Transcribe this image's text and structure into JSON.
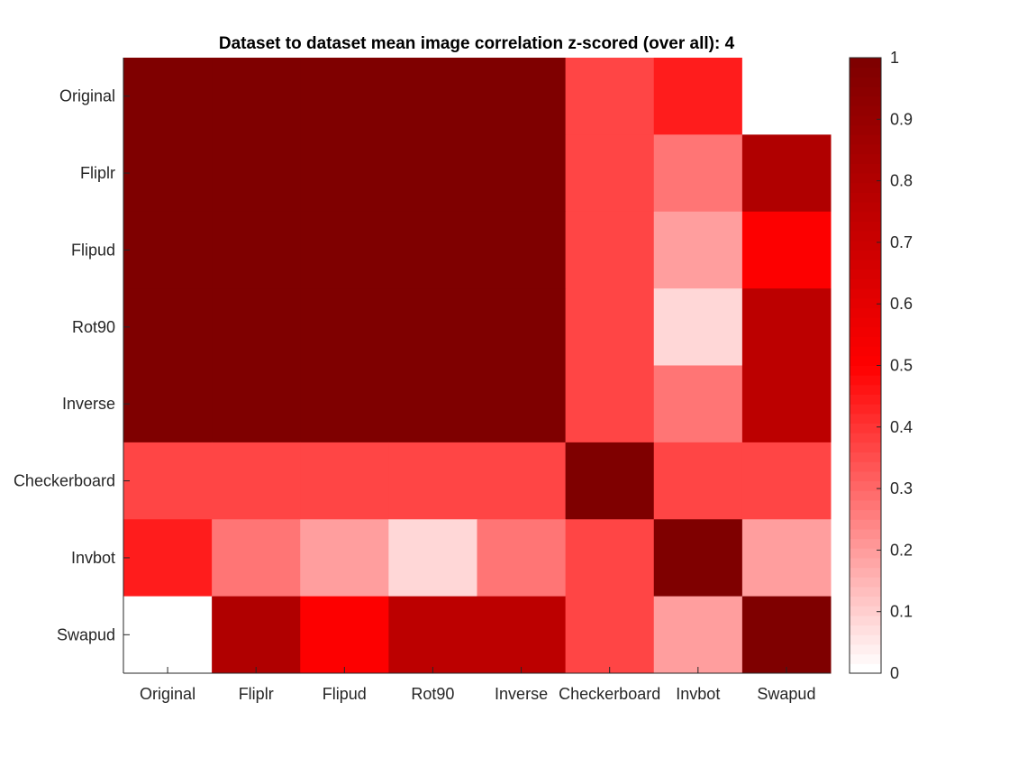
{
  "chart_data": {
    "type": "heatmap",
    "title": "Dataset to dataset mean image correlation z-scored (over all): 4",
    "xlabel": "",
    "ylabel": "",
    "x_categories": [
      "Original",
      "Fliplr",
      "Flipud",
      "Rot90",
      "Inverse",
      "Checkerboard",
      "Invbot",
      "Swapud"
    ],
    "y_categories": [
      "Original",
      "Fliplr",
      "Flipud",
      "Rot90",
      "Inverse",
      "Checkerboard",
      "Invbot",
      "Swapud"
    ],
    "values": [
      [
        1.0,
        1.0,
        1.0,
        1.0,
        1.0,
        0.36,
        0.44,
        0.0
      ],
      [
        1.0,
        1.0,
        1.0,
        1.0,
        1.0,
        0.36,
        0.28,
        0.8
      ],
      [
        1.0,
        1.0,
        1.0,
        1.0,
        1.0,
        0.36,
        0.2,
        0.5
      ],
      [
        1.0,
        1.0,
        1.0,
        1.0,
        1.0,
        0.36,
        0.08,
        0.76
      ],
      [
        1.0,
        1.0,
        1.0,
        1.0,
        1.0,
        0.36,
        0.28,
        0.76
      ],
      [
        0.36,
        0.36,
        0.36,
        0.36,
        0.36,
        1.0,
        0.36,
        0.36
      ],
      [
        0.44,
        0.28,
        0.2,
        0.08,
        0.28,
        0.36,
        1.0,
        0.2
      ],
      [
        0.0,
        0.8,
        0.5,
        0.76,
        0.76,
        0.36,
        0.2,
        1.0
      ]
    ],
    "colorbar": {
      "min": 0,
      "max": 1,
      "ticks": [
        "0",
        "0.1",
        "0.2",
        "0.3",
        "0.4",
        "0.5",
        "0.6",
        "0.7",
        "0.8",
        "0.9",
        "1"
      ],
      "colormap": [
        "#ffffff",
        "#ff0000",
        "#7f0000"
      ],
      "levels": 64
    },
    "grid": false,
    "legend": "colorbar-right"
  }
}
